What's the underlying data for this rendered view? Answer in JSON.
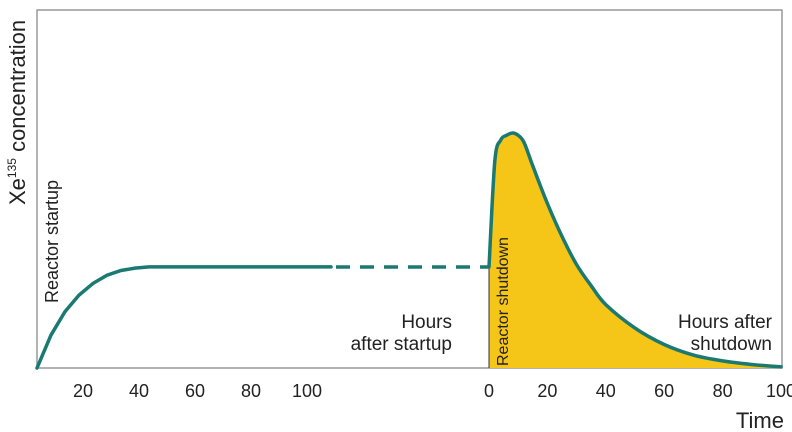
{
  "chart_data": {
    "type": "line",
    "title": "",
    "ylabel_main": "Xe",
    "ylabel_sup": "135",
    "ylabel_rest": " concentration",
    "xlabel": "Time",
    "annotations": {
      "startup": "Reactor startup",
      "shutdown": "Reactor shutdown",
      "hours_startup_line1": "Hours",
      "hours_startup_line2": "after startup",
      "hours_shutdown_line1": "Hours after",
      "hours_shutdown_line2": "shutdown"
    },
    "colors": {
      "curve": "#1a7a72",
      "fill": "#f5c518",
      "frame": "#999999"
    },
    "startup_segment": {
      "xlim": [
        0,
        100
      ],
      "ticks": [
        "20",
        "40",
        "60",
        "80",
        "100"
      ],
      "x": [
        0,
        5,
        10,
        15,
        20,
        25,
        30,
        35,
        40,
        45,
        50,
        60,
        70,
        80,
        90,
        100,
        105
      ],
      "y": [
        0,
        0.14,
        0.24,
        0.31,
        0.36,
        0.395,
        0.415,
        0.425,
        0.43,
        0.43,
        0.43,
        0.43,
        0.43,
        0.43,
        0.43,
        0.43,
        0.43
      ]
    },
    "steady_dashed_level": 0.43,
    "shutdown_segment": {
      "xlim": [
        0,
        100
      ],
      "ticks": [
        "0",
        "20",
        "40",
        "60",
        "80",
        "100"
      ],
      "x": [
        0,
        2,
        4,
        6,
        8,
        10,
        12,
        15,
        20,
        25,
        30,
        35,
        40,
        50,
        60,
        70,
        80,
        90,
        100
      ],
      "y": [
        0.43,
        0.88,
        0.97,
        0.99,
        1.0,
        0.99,
        0.96,
        0.86,
        0.7,
        0.56,
        0.44,
        0.35,
        0.27,
        0.17,
        0.1,
        0.055,
        0.03,
        0.015,
        0.005
      ]
    }
  }
}
